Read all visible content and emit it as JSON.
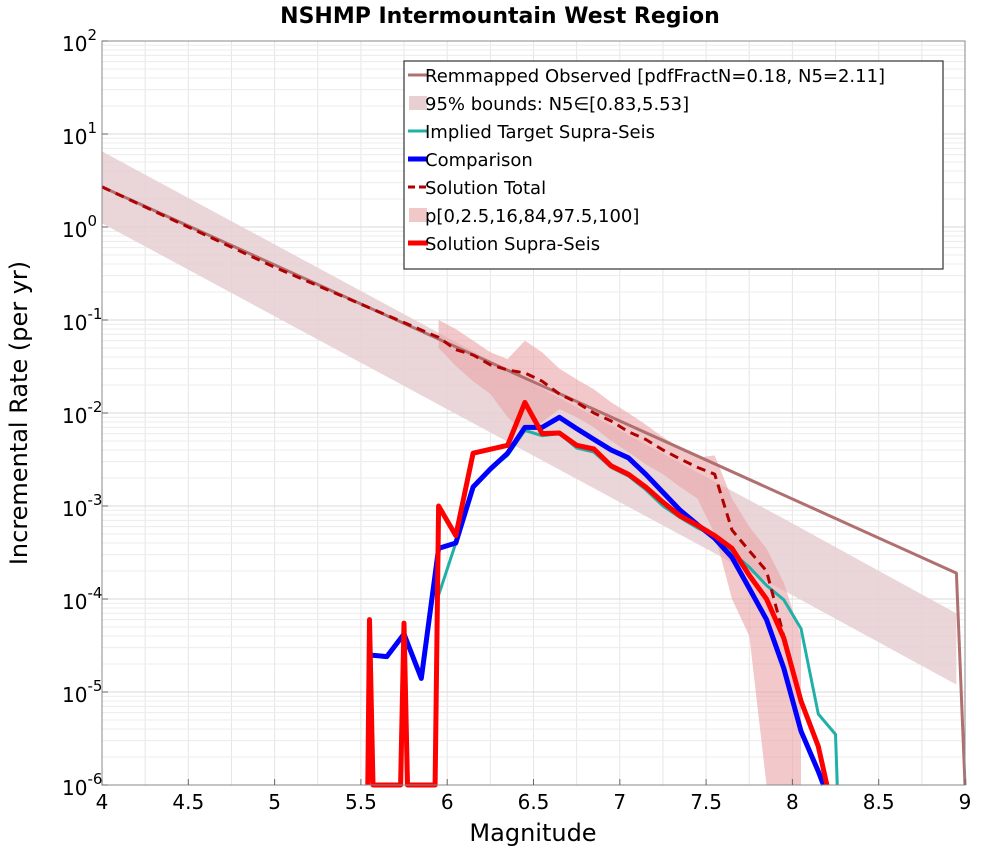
{
  "chart_data": {
    "type": "line",
    "title": "NSHMP Intermountain West Region",
    "xlabel": "Magnitude",
    "ylabel": "Incremental Rate (per yr)",
    "xlim": [
      4,
      9
    ],
    "ylim": [
      1e-06,
      100
    ],
    "yscale": "log",
    "grid": true,
    "legend_position": "top-right",
    "x_ticks": [
      4,
      4.5,
      5,
      5.5,
      6,
      6.5,
      7,
      7.5,
      8,
      8.5,
      9
    ],
    "x_tick_labels": [
      "4",
      "4.5",
      "5",
      "5.5",
      "6",
      "6.5",
      "7",
      "7.5",
      "8",
      "8.5",
      "9"
    ],
    "y_ticks": [
      {
        "value": 1e-06,
        "base": "10",
        "exp": "-6"
      },
      {
        "value": 1e-05,
        "base": "10",
        "exp": "-5"
      },
      {
        "value": 0.0001,
        "base": "10",
        "exp": "-4"
      },
      {
        "value": 0.001,
        "base": "10",
        "exp": "-3"
      },
      {
        "value": 0.01,
        "base": "10",
        "exp": "-2"
      },
      {
        "value": 0.1,
        "base": "10",
        "exp": "-1"
      },
      {
        "value": 1,
        "base": "10",
        "exp": "0"
      },
      {
        "value": 10,
        "base": "10",
        "exp": "1"
      },
      {
        "value": 100,
        "base": "10",
        "exp": "2"
      }
    ],
    "colors": {
      "observed": "#b07070",
      "bounds": "#e8d0d2",
      "target": "#20b0a8",
      "comparison": "#0000ff",
      "solution_total": "#b00000",
      "percentile_band": "#f0a8a8",
      "solution_supra": "#ff0000"
    },
    "bands": [
      {
        "name": "95% bounds: N5∈[0.83,5.53]",
        "x": [
          4.0,
          5.0,
          6.0,
          7.0,
          8.0,
          8.95
        ],
        "lower": [
          1.1,
          0.11,
          0.011,
          0.0011,
          0.00011,
          1.2e-05
        ],
        "upper": [
          6.5,
          0.65,
          0.065,
          0.0065,
          0.00065,
          7e-05
        ]
      },
      {
        "name": "p[0,2.5,16,84,97.5,100]",
        "x": [
          5.95,
          6.05,
          6.15,
          6.25,
          6.35,
          6.45,
          6.55,
          6.65,
          6.75,
          6.85,
          6.95,
          7.05,
          7.15,
          7.25,
          7.35,
          7.45,
          7.55,
          7.65,
          7.75,
          7.85,
          7.95,
          8.05
        ],
        "lower": [
          0.05,
          0.032,
          0.022,
          0.016,
          0.009,
          0.006,
          0.008,
          0.011,
          0.009,
          0.007,
          0.005,
          0.0038,
          0.0028,
          0.0022,
          0.0016,
          0.0012,
          0.0005,
          0.0001,
          4e-05,
          1e-06,
          1e-06,
          1e-06
        ],
        "upper": [
          0.1,
          0.08,
          0.06,
          0.045,
          0.038,
          0.06,
          0.045,
          0.03,
          0.023,
          0.018,
          0.013,
          0.01,
          0.0075,
          0.0055,
          0.0042,
          0.0033,
          0.0035,
          0.0012,
          0.0006,
          0.00035,
          0.00015,
          4e-05
        ]
      }
    ],
    "series": [
      {
        "name": "Remmapped Observed [pdfFractN=0.18, N5=2.11]",
        "x": [
          4.0,
          8.95,
          9.0
        ],
        "y": [
          2.7,
          0.00019,
          1e-06
        ]
      },
      {
        "name": "Implied Target Supra-Seis",
        "x": [
          5.95,
          6.05,
          6.15,
          6.25,
          6.35,
          6.45,
          6.55,
          6.65,
          6.75,
          6.85,
          6.95,
          7.05,
          7.15,
          7.25,
          7.35,
          7.45,
          7.55,
          7.65,
          7.75,
          7.85,
          7.95,
          8.05,
          8.15,
          8.25,
          8.26
        ],
        "y": [
          0.00011,
          0.0004,
          0.0016,
          0.0025,
          0.0035,
          0.0065,
          0.0057,
          0.006,
          0.0042,
          0.0038,
          0.0026,
          0.0021,
          0.0015,
          0.001,
          0.00075,
          0.00058,
          0.00048,
          0.00032,
          0.00022,
          0.00014,
          9.8e-05,
          4.8e-05,
          5.8e-06,
          3.5e-06,
          1e-06
        ]
      },
      {
        "name": "Comparison",
        "x": [
          5.55,
          5.65,
          5.75,
          5.85,
          5.95,
          6.05,
          6.15,
          6.25,
          6.35,
          6.45,
          6.55,
          6.65,
          6.75,
          6.85,
          6.95,
          7.05,
          7.15,
          7.25,
          7.35,
          7.45,
          7.55,
          7.65,
          7.75,
          7.85,
          7.95,
          8.05,
          8.15,
          8.18
        ],
        "y": [
          2.5e-05,
          2.4e-05,
          4.2e-05,
          1.4e-05,
          0.00035,
          0.0004,
          0.0016,
          0.0025,
          0.0037,
          0.007,
          0.007,
          0.009,
          0.0068,
          0.0052,
          0.004,
          0.0033,
          0.0022,
          0.0014,
          0.0009,
          0.00063,
          0.00045,
          0.00028,
          0.00013,
          6e-05,
          1.8e-05,
          3.8e-06,
          1.4e-06,
          1e-06
        ]
      },
      {
        "name": "Solution Total",
        "dashed": true,
        "x": [
          4.0,
          5.0,
          5.95,
          6.05,
          6.15,
          6.25,
          6.35,
          6.45,
          6.55,
          6.65,
          6.75,
          6.85,
          6.95,
          7.05,
          7.15,
          7.25,
          7.35,
          7.45,
          7.55,
          7.65,
          7.75,
          7.85,
          7.95
        ],
        "y": [
          2.7,
          0.37,
          0.065,
          0.048,
          0.042,
          0.033,
          0.029,
          0.027,
          0.022,
          0.016,
          0.013,
          0.01,
          0.0082,
          0.0063,
          0.0052,
          0.004,
          0.0032,
          0.0026,
          0.0022,
          0.00055,
          0.00033,
          0.0002,
          4e-05
        ]
      },
      {
        "name": "Solution Supra-Seis",
        "x": [
          5.54,
          5.55,
          5.57,
          5.73,
          5.75,
          5.77,
          5.93,
          5.95,
          6.05,
          6.15,
          6.35,
          6.45,
          6.55,
          6.65,
          6.75,
          6.85,
          6.95,
          7.05,
          7.15,
          7.25,
          7.35,
          7.45,
          7.55,
          7.65,
          7.75,
          7.85,
          7.95,
          8.05,
          8.15,
          8.2
        ],
        "y": [
          1e-06,
          6e-05,
          1e-06,
          1e-06,
          5.5e-05,
          1e-06,
          1e-06,
          0.001,
          0.00048,
          0.0037,
          0.0045,
          0.013,
          0.006,
          0.0061,
          0.0045,
          0.0041,
          0.0027,
          0.0022,
          0.0016,
          0.0011,
          0.00078,
          0.00062,
          0.00048,
          0.00035,
          0.00018,
          0.0001,
          3.8e-05,
          8e-06,
          2.6e-06,
          1e-06
        ]
      }
    ],
    "legend": [
      {
        "label": "Remmapped Observed [pdfFractN=0.18, N5=2.11]",
        "kind": "line",
        "color": "#b07070",
        "width": 3
      },
      {
        "label": "95% bounds: N5∈[0.83,5.53]",
        "kind": "band",
        "color": "#e8d0d2"
      },
      {
        "label": "Implied Target Supra-Seis",
        "kind": "line",
        "color": "#20b0a8",
        "width": 3
      },
      {
        "label": "Comparison",
        "kind": "line",
        "color": "#0000ff",
        "width": 5
      },
      {
        "label": "Solution Total",
        "kind": "dashed",
        "color": "#b00000",
        "width": 3
      },
      {
        "label": "p[0,2.5,16,84,97.5,100]",
        "kind": "band",
        "color": "#f0c8c8"
      },
      {
        "label": "Solution Supra-Seis",
        "kind": "line",
        "color": "#ff0000",
        "width": 5
      }
    ]
  }
}
